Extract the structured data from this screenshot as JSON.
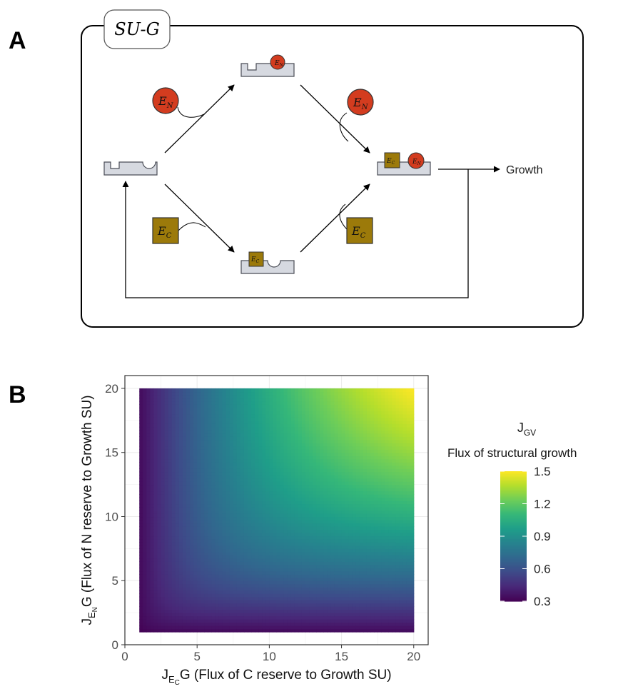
{
  "panel_a": {
    "letter": "A",
    "box_title": "SU-G",
    "growth_label": "Growth",
    "en_base": "E",
    "en_sub": "N",
    "ec_base": "E",
    "ec_sub": "C"
  },
  "panel_b": {
    "letter": "B"
  },
  "chart_data": {
    "type": "heatmap",
    "xlabel": {
      "main": "J",
      "sub1": "E",
      "sub2": "C",
      "tail": "G (Flux of C reserve to Growth SU)"
    },
    "ylabel": {
      "main": "J",
      "sub1": "E",
      "sub2": "N",
      "tail": "G (Flux of N reserve to Growth SU)"
    },
    "xlim": [
      0,
      21
    ],
    "ylim": [
      0,
      21
    ],
    "x_data_range": [
      1,
      20
    ],
    "y_data_range": [
      1,
      20
    ],
    "x_ticks": [
      0,
      5,
      10,
      15,
      20
    ],
    "y_ticks": [
      0,
      5,
      10,
      15,
      20
    ],
    "x_tick_labels": [
      "0",
      "5",
      "10",
      "15",
      "20"
    ],
    "y_tick_labels": [
      "0",
      "5",
      "10",
      "15",
      "20"
    ],
    "grid": true,
    "legend": {
      "title_main": "J",
      "title_sub": "GV",
      "subtitle": "Flux of structural growth",
      "placement": "right",
      "min": 0.3,
      "max": 1.5,
      "ticks": [
        1.5,
        1.2,
        0.9,
        0.6,
        0.3
      ],
      "tick_labels": [
        "1.5",
        "1.2",
        "0.9",
        "0.6",
        "0.3"
      ]
    },
    "colormap": "viridis",
    "value_at_corners": {
      "x1_y1": 0.3,
      "x20_y1": 0.68,
      "x1_y20": 0.68,
      "x20_y20": 1.5
    }
  },
  "colors": {
    "en_fill": "#d33c1f",
    "ec_fill": "#9c7a0a",
    "block_fill": "#d6d9e0",
    "block_stroke": "#4a4d56",
    "box_stroke": "#000000",
    "plot_border": "#333333",
    "grid_color": "#ebebeb"
  }
}
